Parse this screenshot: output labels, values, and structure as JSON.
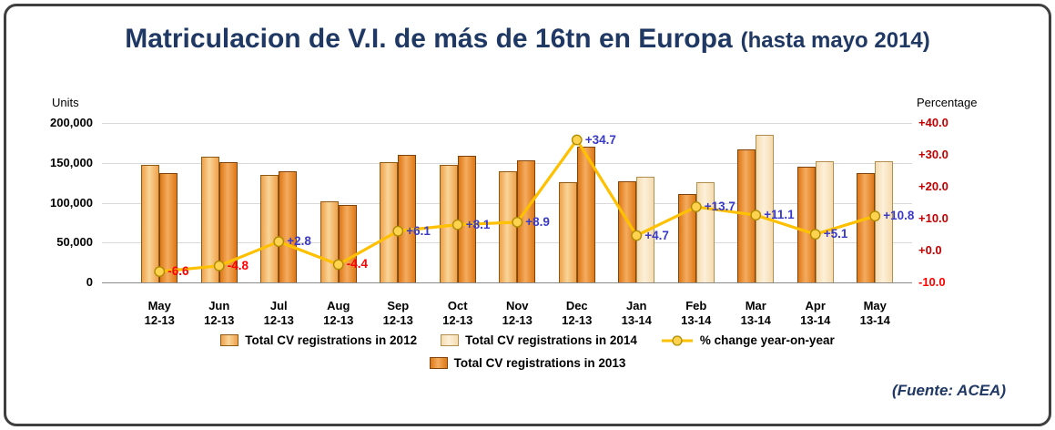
{
  "title": {
    "main": "Matriculacion de V.I. de más de 16tn en Europa",
    "suffix": "(hasta mayo 2014)"
  },
  "footer": {
    "source": "(Fuente: ACEA)"
  },
  "chart_data": {
    "type": "combo-bar-line",
    "units_axis": {
      "title": "Units",
      "min": 0,
      "max": 200000,
      "ticks": [
        {
          "label": "0",
          "value": 0
        },
        {
          "label": "50,000",
          "value": 50000
        },
        {
          "label": "100,000",
          "value": 100000
        },
        {
          "label": "150,000",
          "value": 150000
        },
        {
          "label": "200,000",
          "value": 200000
        }
      ]
    },
    "pct_axis": {
      "title": "Percentage",
      "min": -10,
      "max": 40,
      "ticks": [
        {
          "label": "+40.0",
          "value": 40,
          "color": "#c00000"
        },
        {
          "label": "+30.0",
          "value": 30,
          "color": "#c00000"
        },
        {
          "label": "+20.0",
          "value": 20,
          "color": "#c00000"
        },
        {
          "label": "+10.0",
          "value": 10,
          "color": "#c00000"
        },
        {
          "label": "+0.0",
          "value": 0,
          "color": "#c00000"
        },
        {
          "label": "-10.0",
          "value": -10,
          "color": "#ff0000"
        }
      ]
    },
    "groups": [
      {
        "month": "May",
        "period": "12-13",
        "bar1_series": "2012",
        "bar1": 147000,
        "bar2_series": "2013",
        "bar2": 137000,
        "pct": -6.6,
        "pct_label": "-6.6"
      },
      {
        "month": "Jun",
        "period": "12-13",
        "bar1_series": "2012",
        "bar1": 158000,
        "bar2_series": "2013",
        "bar2": 151000,
        "pct": -4.8,
        "pct_label": "-4.8"
      },
      {
        "month": "Jul",
        "period": "12-13",
        "bar1_series": "2012",
        "bar1": 135000,
        "bar2_series": "2013",
        "bar2": 139000,
        "pct": 2.8,
        "pct_label": "+2.8"
      },
      {
        "month": "Aug",
        "period": "12-13",
        "bar1_series": "2012",
        "bar1": 102000,
        "bar2_series": "2013",
        "bar2": 97000,
        "pct": -4.4,
        "pct_label": "-4.4"
      },
      {
        "month": "Sep",
        "period": "12-13",
        "bar1_series": "2012",
        "bar1": 151000,
        "bar2_series": "2013",
        "bar2": 160000,
        "pct": 6.1,
        "pct_label": "+6.1"
      },
      {
        "month": "Oct",
        "period": "12-13",
        "bar1_series": "2012",
        "bar1": 147000,
        "bar2_series": "2013",
        "bar2": 159000,
        "pct": 8.1,
        "pct_label": "+8.1"
      },
      {
        "month": "Nov",
        "period": "12-13",
        "bar1_series": "2012",
        "bar1": 140000,
        "bar2_series": "2013",
        "bar2": 153000,
        "pct": 8.9,
        "pct_label": "+8.9"
      },
      {
        "month": "Dec",
        "period": "12-13",
        "bar1_series": "2012",
        "bar1": 126000,
        "bar2_series": "2013",
        "bar2": 170000,
        "pct": 34.7,
        "pct_label": "+34.7"
      },
      {
        "month": "Jan",
        "period": "13-14",
        "bar1_series": "2013",
        "bar1": 127000,
        "bar2_series": "2014",
        "bar2": 133000,
        "pct": 4.7,
        "pct_label": "+4.7"
      },
      {
        "month": "Feb",
        "period": "13-14",
        "bar1_series": "2013",
        "bar1": 111000,
        "bar2_series": "2014",
        "bar2": 126000,
        "pct": 13.7,
        "pct_label": "+13.7"
      },
      {
        "month": "Mar",
        "period": "13-14",
        "bar1_series": "2013",
        "bar1": 167000,
        "bar2_series": "2014",
        "bar2": 185000,
        "pct": 11.1,
        "pct_label": "+11.1"
      },
      {
        "month": "Apr",
        "period": "13-14",
        "bar1_series": "2013",
        "bar1": 145000,
        "bar2_series": "2014",
        "bar2": 152000,
        "pct": 5.1,
        "pct_label": "+5.1"
      },
      {
        "month": "May",
        "period": "13-14",
        "bar1_series": "2013",
        "bar1": 137000,
        "bar2_series": "2014",
        "bar2": 152000,
        "pct": 10.8,
        "pct_label": "+10.8"
      }
    ],
    "series_colors": {
      "2012": {
        "fill": "#EFA14B",
        "light": "#F9D598",
        "border": "#8C5A13"
      },
      "2013": {
        "fill": "#DF7816",
        "light": "#F4AC60",
        "border": "#7F440C"
      },
      "2014": {
        "fill": "#F5DCB0",
        "light": "#FCF0D9",
        "border": "#B08E4E"
      },
      "line": {
        "stroke": "#FFC000",
        "marker": "#FFD34F",
        "marker_border": "#B08C00"
      }
    },
    "label_colors": {
      "positive": "#3A3AC8",
      "negative": "#FF0000"
    },
    "legend": [
      [
        {
          "swatch": "2012",
          "label": "Total CV registrations in 2012"
        },
        {
          "swatch": "2014",
          "label": "Total CV registrations in 2014"
        },
        {
          "swatch": "line",
          "label": "% change year-on-year"
        }
      ],
      [
        {
          "swatch": "2013",
          "label": "Total CV registrations in 2013"
        }
      ]
    ]
  }
}
